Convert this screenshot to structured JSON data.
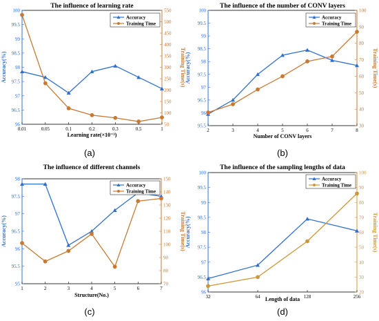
{
  "colors": {
    "accuracy": "#2e6fd0",
    "time": "#c87932",
    "panel_d_time": "#d09638"
  },
  "chart_data": [
    {
      "type": "line",
      "caption": "(a)",
      "title": "The influence of learning rate",
      "xlabel": "Learning rate(×10⁻³)",
      "ylabel_left": "Accuracy(%)",
      "ylabel_right": "Training Time(s)",
      "categories": [
        "0.01",
        "0.05",
        "0.1",
        "0.2",
        "0.3",
        "0.5",
        "1"
      ],
      "y_ticks": [
        "96",
        "96.5",
        "97",
        "97.5",
        "98",
        "98.5",
        "99",
        "99.5",
        "100"
      ],
      "y_range": [
        96,
        100
      ],
      "y2_ticks": [
        "50",
        "100",
        "150",
        "200",
        "250",
        "300",
        "350",
        "400",
        "450",
        "500",
        "550"
      ],
      "y2_range": [
        50,
        550
      ],
      "legend": "top-right",
      "series": [
        {
          "name": "Accuracy",
          "axis": "left",
          "values": [
            97.85,
            97.65,
            97.1,
            97.85,
            98.05,
            97.65,
            97.25
          ]
        },
        {
          "name": "Training Time",
          "axis": "right",
          "values": [
            530,
            230,
            120,
            90,
            78,
            62,
            80
          ]
        }
      ]
    },
    {
      "type": "line",
      "caption": "(b)",
      "title": "The influence of the number of CONV layers",
      "xlabel": "Number of CONV layers",
      "ylabel_left": "Accuracy(%)",
      "ylabel_right": "Training Time(s)",
      "categories": [
        "2",
        "3",
        "4",
        "5",
        "6",
        "7",
        "8"
      ],
      "y_ticks": [
        "95.5",
        "96",
        "96.5",
        "97",
        "97.5",
        "98",
        "98.5",
        "99",
        "99.5",
        "100"
      ],
      "y_range": [
        95.5,
        100
      ],
      "y2_ticks": [
        "30",
        "40",
        "50",
        "60",
        "70",
        "80",
        "90",
        "100"
      ],
      "y2_range": [
        30,
        100
      ],
      "legend": "top-right",
      "series": [
        {
          "name": "Accuracy",
          "axis": "left",
          "values": [
            95.95,
            96.5,
            97.5,
            98.25,
            98.45,
            98.05,
            97.85
          ]
        },
        {
          "name": "Training Time",
          "axis": "right",
          "values": [
            38,
            43,
            52,
            60,
            69,
            72,
            87
          ]
        }
      ]
    },
    {
      "type": "line",
      "caption": "(c)",
      "title": "The influence of different channels",
      "xlabel": "Structure(No.)",
      "ylabel_left": "Accuracy(%)",
      "ylabel_right": "Training Time(s)",
      "categories": [
        "1",
        "2",
        "3",
        "4",
        "5",
        "6",
        "7"
      ],
      "y_ticks": [
        "95",
        "95.5",
        "96",
        "96.5",
        "97",
        "97.5",
        "98"
      ],
      "y_range": [
        95,
        98
      ],
      "y2_ticks": [
        "70",
        "80",
        "90",
        "100",
        "110",
        "120",
        "130",
        "140",
        "150"
      ],
      "y2_range": [
        70,
        150
      ],
      "legend": "top-right",
      "series": [
        {
          "name": "Accuracy",
          "axis": "left",
          "values": [
            97.85,
            97.85,
            96.1,
            96.5,
            97.1,
            97.6,
            97.5
          ]
        },
        {
          "name": "Training Time",
          "axis": "right",
          "values": [
            101,
            87,
            95,
            108,
            83,
            133,
            135
          ]
        }
      ]
    },
    {
      "type": "line",
      "caption": "(d)",
      "title": "The influence of the sampling lengths of data",
      "xlabel": "Length of data",
      "ylabel_left": "Accuracy(%)",
      "ylabel_right": "Training Time(s)",
      "categories": [
        "32",
        "64",
        "128",
        "256"
      ],
      "y_ticks": [
        "96",
        "96.5",
        "97",
        "97.5",
        "98",
        "98.5",
        "99",
        "99.5",
        "100"
      ],
      "y_range": [
        96,
        100
      ],
      "y2_ticks": [
        "20",
        "30",
        "40",
        "50",
        "60",
        "70",
        "80",
        "90",
        "100"
      ],
      "y2_range": [
        20,
        100
      ],
      "legend": "top-right",
      "series": [
        {
          "name": "Accuracy",
          "axis": "left",
          "values": [
            96.45,
            96.9,
            98.45,
            98.05
          ]
        },
        {
          "name": "Training Time",
          "axis": "right",
          "values": [
            24,
            30,
            54,
            86
          ]
        }
      ]
    }
  ]
}
